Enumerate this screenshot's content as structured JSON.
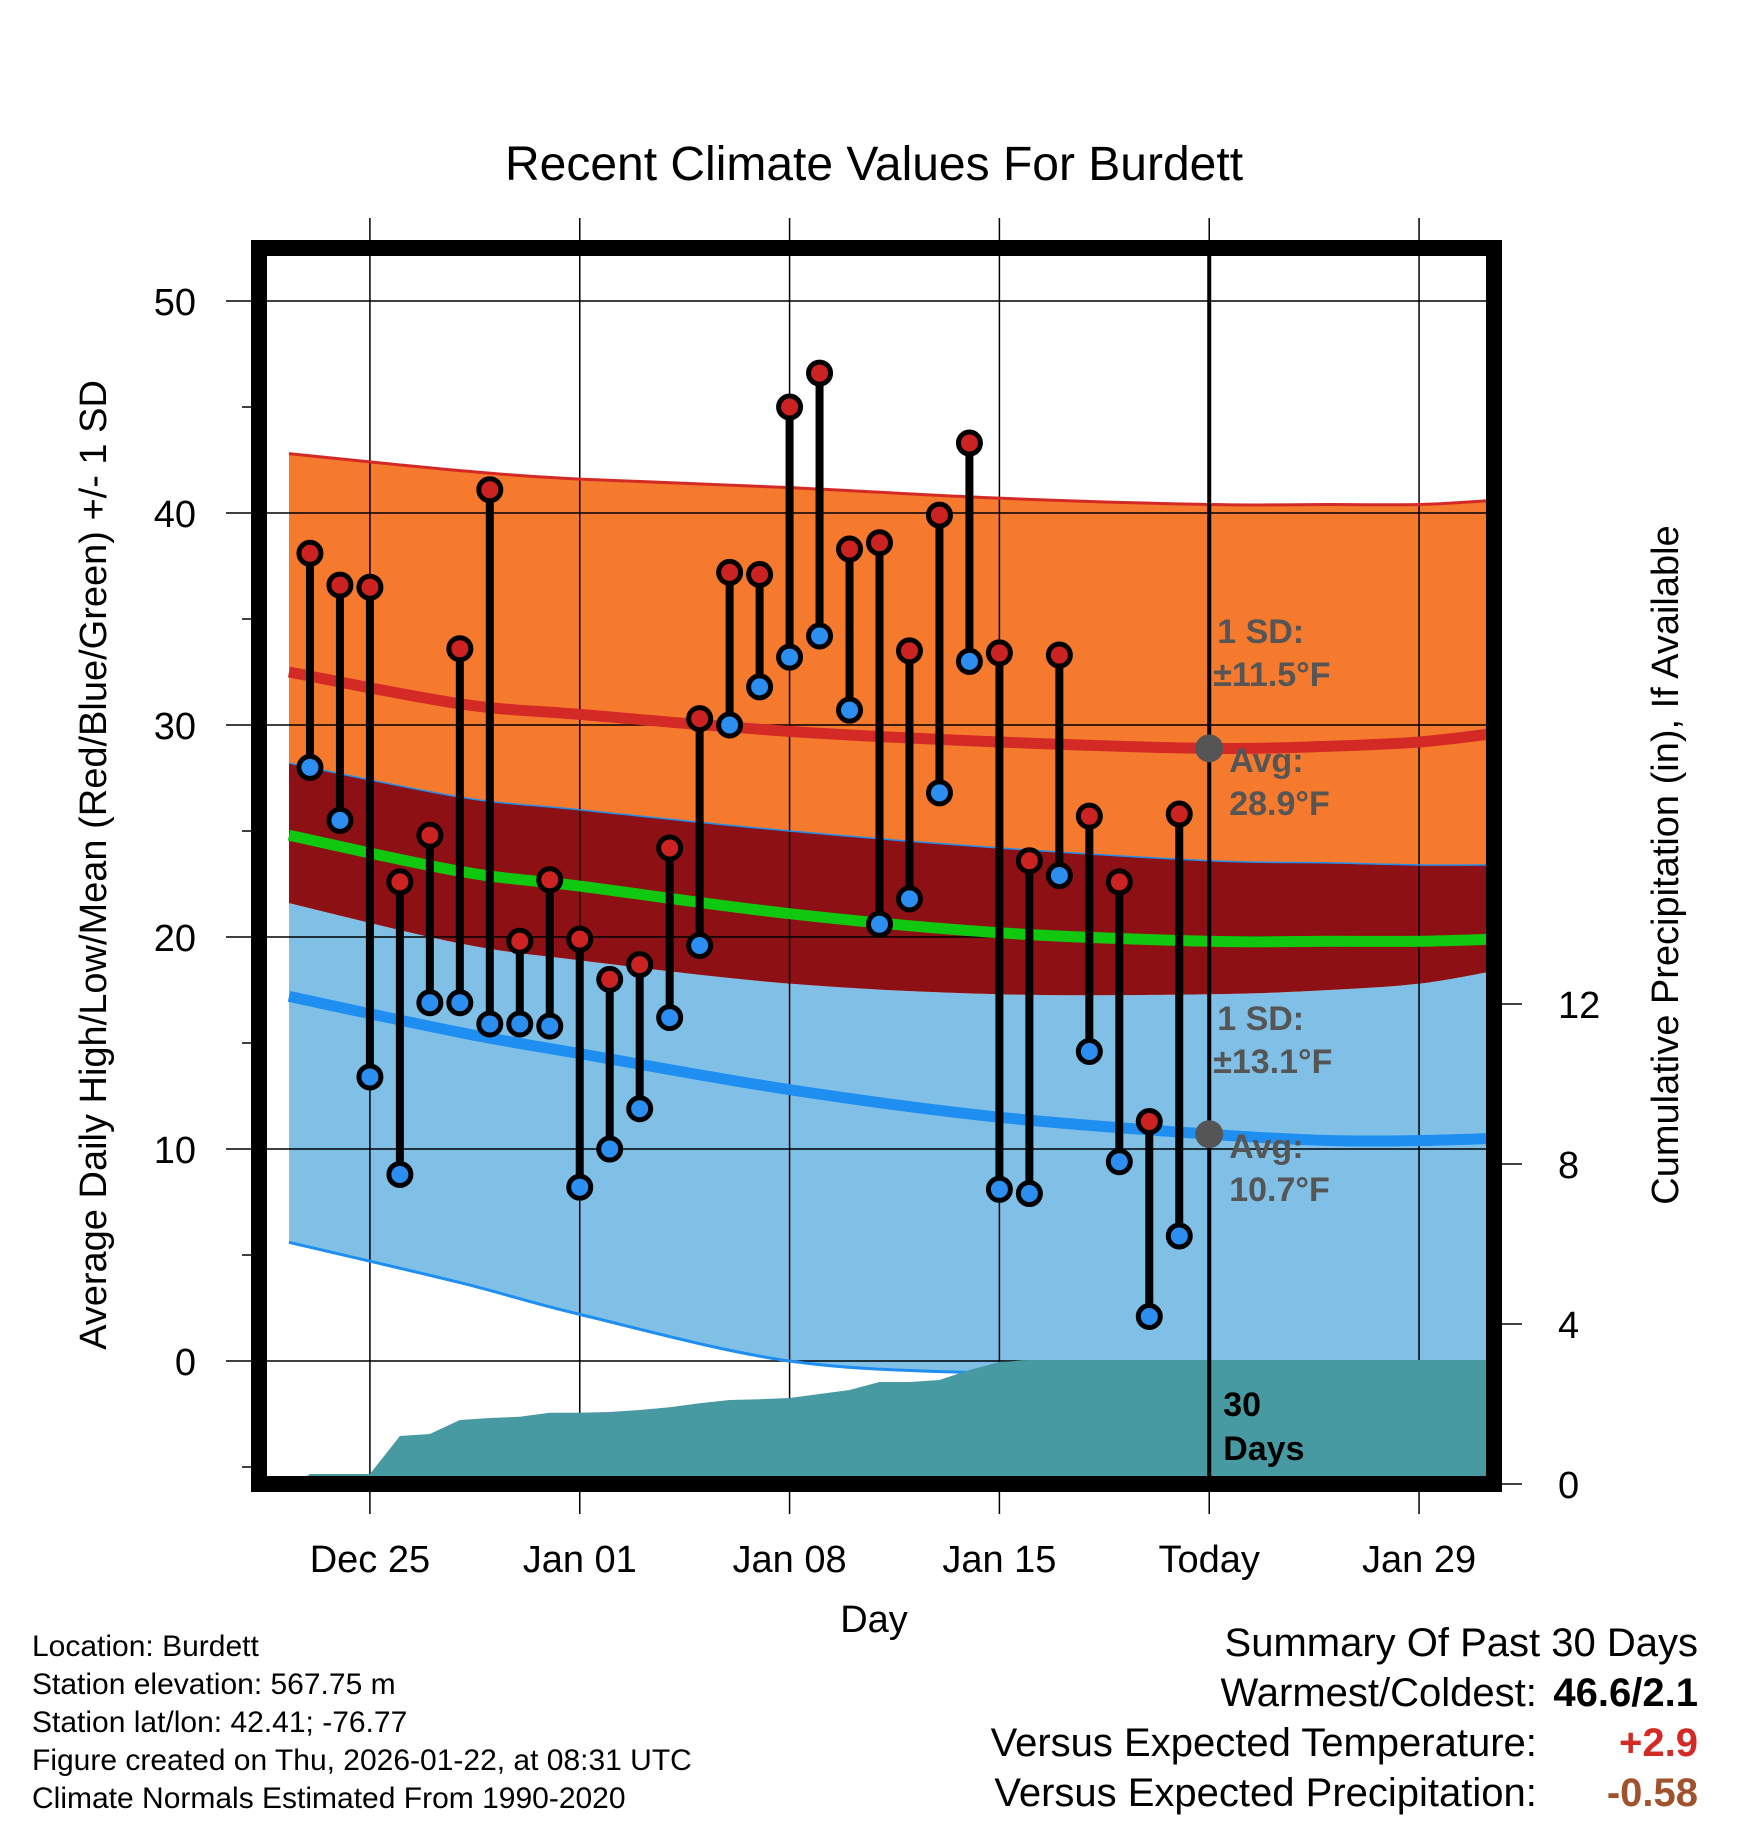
{
  "chart_data": {
    "type": "line",
    "title": "Recent Climate Values For Burdett",
    "xlabel": "Day",
    "ylabel": "Average Daily High/Low/Mean (Red/Blue/Green) +/- 1 SD",
    "y2label": "Cumulative Precipitation (in), If Available",
    "xlim": [
      -3.7,
      37.5
    ],
    "ylim": [
      -5.8,
      52.5
    ],
    "y2lim": [
      0,
      30.9
    ],
    "x_ticks": [
      {
        "x": 0,
        "label": "Dec 25"
      },
      {
        "x": 7,
        "label": "Jan 01"
      },
      {
        "x": 14,
        "label": "Jan 08"
      },
      {
        "x": 21,
        "label": "Jan 15"
      },
      {
        "x": 28,
        "label": "Today"
      },
      {
        "x": 35,
        "label": "Jan 29"
      }
    ],
    "y_ticks": [
      0,
      10,
      20,
      30,
      40,
      50
    ],
    "y2_ticks": [
      0,
      4,
      8,
      12
    ],
    "normals": {
      "x": [
        -2.7,
        3,
        7,
        14,
        21,
        28,
        32,
        35,
        37.5
      ],
      "high_avg": [
        32.5,
        31,
        30.5,
        29.7,
        29.2,
        28.9,
        29,
        29.2,
        29.6
      ],
      "high_plus_sd": [
        42.8,
        42,
        41.6,
        41.2,
        40.7,
        40.4,
        40.4,
        40.4,
        40.6
      ],
      "high_minus_sd": [
        28.2,
        26.6,
        26,
        25,
        24.2,
        23.6,
        23.5,
        23.4,
        23.4
      ],
      "mean_avg": [
        24.8,
        23.1,
        22.4,
        21.1,
        20.2,
        19.8,
        19.8,
        19.8,
        19.9
      ],
      "low_avg": [
        17.2,
        15.5,
        14.5,
        12.8,
        11.5,
        10.7,
        10.4,
        10.4,
        10.5
      ],
      "low_plus_sd": [
        21.6,
        19.7,
        18.9,
        17.8,
        17.3,
        17.3,
        17.5,
        17.8,
        18.4
      ],
      "low_minus_sd": [
        5.6,
        3.7,
        2.2,
        0.0,
        -0.6,
        -0.9,
        -0.8,
        -0.7,
        -0.6
      ]
    },
    "series": [
      {
        "name": "Daily High",
        "color": "#cc2222",
        "x": [
          -2,
          -1,
          0,
          1,
          2,
          3,
          4,
          5,
          6,
          7,
          8,
          9,
          10,
          11,
          12,
          13,
          14,
          15,
          16,
          17,
          18,
          19,
          20,
          21,
          22,
          23,
          24,
          25,
          26,
          27
        ],
        "values": [
          38.1,
          36.6,
          36.5,
          22.6,
          24.8,
          33.6,
          41.1,
          19.8,
          22.7,
          19.9,
          18.0,
          18.7,
          24.2,
          30.3,
          37.2,
          37.1,
          45.0,
          46.6,
          38.3,
          38.6,
          33.5,
          39.9,
          43.3,
          33.4,
          23.6,
          33.3,
          25.7,
          22.6,
          11.3,
          25.8
        ]
      },
      {
        "name": "Daily Low",
        "color": "#2b8ef0",
        "x": [
          -2,
          -1,
          0,
          1,
          2,
          3,
          4,
          5,
          6,
          7,
          8,
          9,
          10,
          11,
          12,
          13,
          14,
          15,
          16,
          17,
          18,
          19,
          20,
          21,
          22,
          23,
          24,
          25,
          26,
          27
        ],
        "values": [
          28.0,
          25.5,
          13.4,
          8.8,
          16.9,
          16.9,
          15.9,
          15.9,
          15.8,
          8.2,
          10.0,
          11.9,
          16.2,
          19.6,
          30.0,
          31.8,
          33.2,
          34.2,
          30.7,
          20.6,
          21.8,
          26.8,
          33.0,
          8.1,
          7.9,
          22.9,
          14.6,
          9.4,
          2.1,
          5.9
        ]
      },
      {
        "name": "Cumulative Precipitation",
        "x": [
          -2.5,
          -2,
          0,
          1,
          2,
          3,
          4,
          5,
          6,
          7,
          8,
          9,
          10,
          11,
          12,
          13,
          14,
          15,
          16,
          17,
          18,
          19,
          20,
          21,
          22,
          23,
          28,
          37.5
        ],
        "values": [
          0,
          0.25,
          0.25,
          1.2,
          1.25,
          1.6,
          1.65,
          1.68,
          1.78,
          1.78,
          1.8,
          1.85,
          1.92,
          2.02,
          2.1,
          2.12,
          2.15,
          2.25,
          2.35,
          2.55,
          2.55,
          2.6,
          2.85,
          3.05,
          3.1,
          3.1,
          3.1,
          3.1
        ]
      }
    ],
    "today_x": 28,
    "annotations": {
      "high_sd": "1 SD:",
      "high_sd_value": "±11.5°F",
      "high_avg_label": "Avg:",
      "high_avg_value": "28.9°F",
      "low_sd": "1 SD:",
      "low_sd_value": "±13.1°F",
      "low_avg_label": "Avg:",
      "low_avg_value": "10.7°F",
      "days_line1": "30",
      "days_line2": "Days"
    },
    "colors": {
      "high_band": "#f57a2e",
      "overlap_band": "#8c1014",
      "low_band": "#80c0e6",
      "high_line": "#d42a25",
      "mean_line": "#11c811",
      "low_line": "#1e8ff0",
      "precip": "#479aa1",
      "annotation": "#555555",
      "avg_marker": "#555555"
    }
  },
  "footer": {
    "location": "Location: Burdett",
    "elevation": "Station elevation: 567.75 m",
    "latlon": "Station lat/lon: 42.41; -76.77",
    "created": "Figure created on Thu, 2026-01-22, at 08:31 UTC",
    "normals": "Climate Normals Estimated From 1990-2020"
  },
  "summary": {
    "title": "Summary Of Past 30 Days",
    "warm_cold_label": "Warmest/Coldest:",
    "warm_cold_value": "46.6/2.1",
    "temp_label": "Versus Expected Temperature:",
    "temp_value": "+2.9",
    "temp_color": "#d42a25",
    "precip_label": "Versus Expected Precipitation:",
    "precip_value": "-0.58",
    "precip_color": "#a0522d"
  }
}
